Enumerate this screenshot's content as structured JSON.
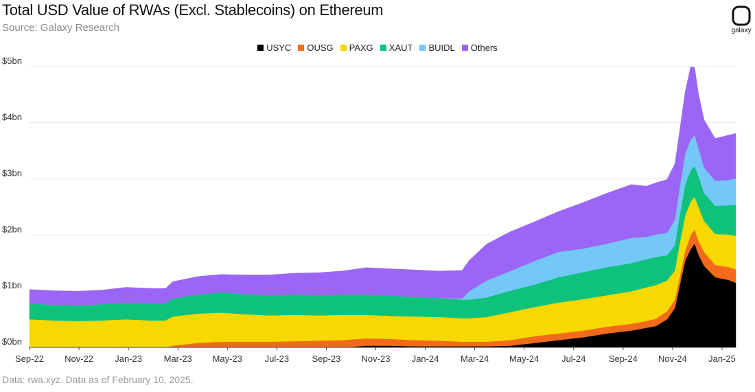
{
  "title": "Total USD Value of RWAs (Excl. Stablecoins) on Ethereum",
  "subtitle": "Source: Galaxy Research",
  "footnote": "Data: rwa.xyz. Data as of February 10, 2025.",
  "logo": {
    "label": "galaxy",
    "icon": "galaxy-logo-icon"
  },
  "chart_data": {
    "type": "area",
    "stacked": true,
    "title": "Total USD Value of RWAs (Excl. Stablecoins) on Ethereum",
    "xlabel": "",
    "ylabel": "",
    "ylim": [
      0,
      5
    ],
    "y_ticks": [
      0,
      1,
      2,
      3,
      4,
      5
    ],
    "y_tick_labels": [
      "$0bn",
      "$1bn",
      "$2bn",
      "$3bn",
      "$4bn",
      "$5bn"
    ],
    "x_ticks": [
      "Sep-22",
      "Nov-22",
      "Jan-23",
      "Mar-23",
      "May-23",
      "Jul-23",
      "Sep-23",
      "Nov-23",
      "Jan-24",
      "Mar-24",
      "May-24",
      "Jul-24",
      "Sep-24",
      "Nov-24",
      "Jan-25"
    ],
    "grid": "horizontal",
    "legend_position": "top-center",
    "x": [
      "2022-09-01",
      "2022-10-01",
      "2022-11-01",
      "2022-12-01",
      "2023-01-01",
      "2023-02-01",
      "2023-02-20",
      "2023-03-01",
      "2023-04-01",
      "2023-05-01",
      "2023-06-01",
      "2023-07-01",
      "2023-08-01",
      "2023-09-01",
      "2023-10-01",
      "2023-11-01",
      "2023-12-01",
      "2024-01-01",
      "2024-02-01",
      "2024-03-01",
      "2024-03-10",
      "2024-04-01",
      "2024-05-01",
      "2024-06-01",
      "2024-07-01",
      "2024-08-01",
      "2024-09-01",
      "2024-10-01",
      "2024-10-20",
      "2024-11-01",
      "2024-11-15",
      "2024-11-25",
      "2024-12-01",
      "2024-12-08",
      "2024-12-15",
      "2024-12-20",
      "2024-12-25",
      "2025-01-01",
      "2025-01-15",
      "2025-02-01",
      "2025-02-10"
    ],
    "series": [
      {
        "name": "USYC",
        "color": "#000000",
        "values": [
          0,
          0,
          0,
          0,
          0,
          0,
          0,
          0,
          0,
          0,
          0,
          0,
          0,
          0,
          0,
          0.03,
          0.03,
          0.02,
          0.02,
          0.02,
          0.02,
          0.02,
          0.03,
          0.08,
          0.13,
          0.18,
          0.25,
          0.3,
          0.35,
          0.38,
          0.5,
          0.7,
          1.1,
          1.55,
          1.75,
          1.85,
          1.65,
          1.45,
          1.25,
          1.2,
          1.15
        ]
      },
      {
        "name": "OUSG",
        "color": "#f26a1b",
        "values": [
          0,
          0,
          0,
          0,
          0,
          0,
          0,
          0.03,
          0.08,
          0.1,
          0.1,
          0.1,
          0.11,
          0.12,
          0.13,
          0.13,
          0.12,
          0.11,
          0.1,
          0.08,
          0.08,
          0.08,
          0.1,
          0.12,
          0.12,
          0.12,
          0.12,
          0.12,
          0.12,
          0.13,
          0.14,
          0.15,
          0.15,
          0.18,
          0.25,
          0.25,
          0.25,
          0.25,
          0.22,
          0.23,
          0.24
        ]
      },
      {
        "name": "PAXG",
        "color": "#f7d800",
        "values": [
          0.5,
          0.48,
          0.47,
          0.48,
          0.5,
          0.48,
          0.48,
          0.52,
          0.52,
          0.52,
          0.49,
          0.47,
          0.47,
          0.45,
          0.45,
          0.42,
          0.41,
          0.42,
          0.42,
          0.42,
          0.42,
          0.44,
          0.5,
          0.52,
          0.55,
          0.56,
          0.56,
          0.58,
          0.6,
          0.6,
          0.55,
          0.52,
          0.6,
          0.62,
          0.6,
          0.58,
          0.6,
          0.55,
          0.55,
          0.58,
          0.6
        ]
      },
      {
        "name": "XAUT",
        "color": "#0ec27b",
        "values": [
          0.28,
          0.28,
          0.28,
          0.29,
          0.3,
          0.3,
          0.3,
          0.32,
          0.34,
          0.36,
          0.36,
          0.36,
          0.36,
          0.36,
          0.36,
          0.36,
          0.36,
          0.35,
          0.34,
          0.33,
          0.33,
          0.35,
          0.38,
          0.4,
          0.45,
          0.48,
          0.5,
          0.5,
          0.5,
          0.5,
          0.45,
          0.45,
          0.5,
          0.55,
          0.55,
          0.55,
          0.55,
          0.5,
          0.5,
          0.52,
          0.55
        ]
      },
      {
        "name": "BUIDL",
        "color": "#73c8f7",
        "values": [
          0,
          0,
          0,
          0,
          0,
          0,
          0,
          0,
          0,
          0,
          0,
          0,
          0,
          0,
          0,
          0,
          0,
          0,
          0,
          0.02,
          0.15,
          0.3,
          0.35,
          0.42,
          0.45,
          0.42,
          0.42,
          0.45,
          0.4,
          0.4,
          0.4,
          0.45,
          0.5,
          0.55,
          0.55,
          0.55,
          0.5,
          0.45,
          0.45,
          0.45,
          0.47
        ]
      },
      {
        "name": "Others",
        "color": "#9b66f5",
        "values": [
          0.25,
          0.25,
          0.25,
          0.25,
          0.27,
          0.27,
          0.27,
          0.3,
          0.32,
          0.32,
          0.34,
          0.36,
          0.38,
          0.4,
          0.42,
          0.48,
          0.48,
          0.48,
          0.48,
          0.5,
          0.55,
          0.65,
          0.7,
          0.7,
          0.72,
          0.82,
          0.9,
          0.95,
          0.9,
          0.92,
          0.95,
          1.0,
          1.0,
          1.1,
          1.3,
          1.2,
          0.95,
          0.85,
          0.75,
          0.8,
          0.8
        ]
      }
    ]
  }
}
